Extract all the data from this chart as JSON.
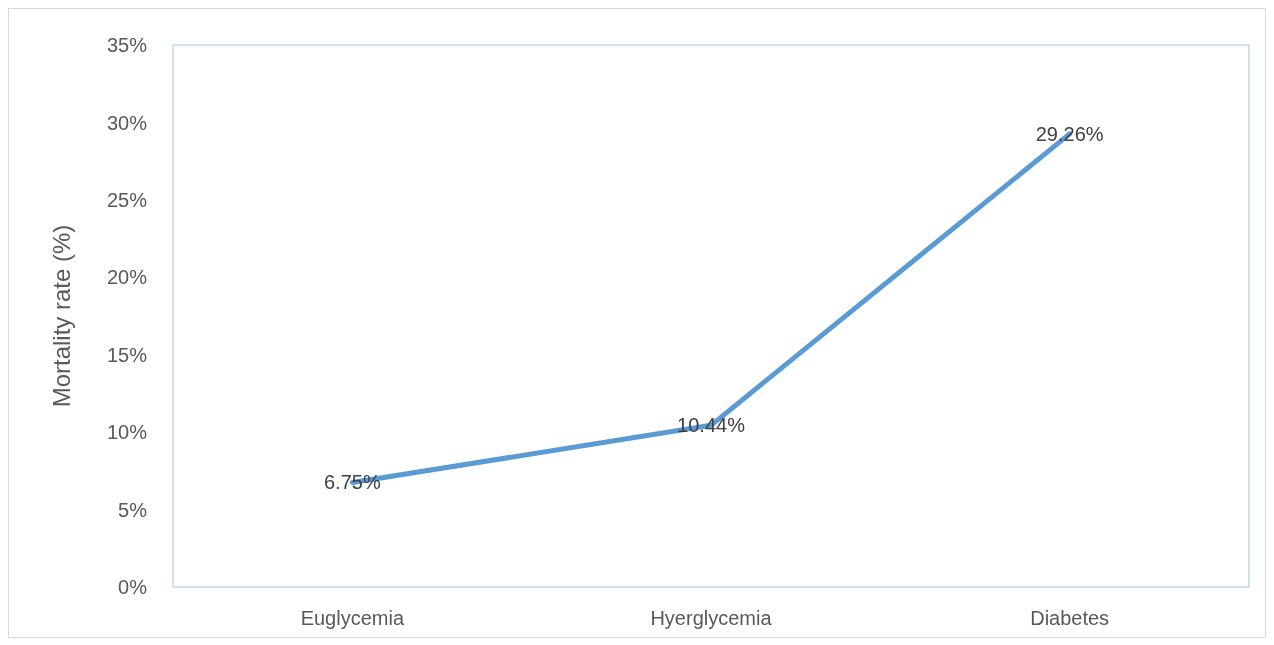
{
  "chart_data": {
    "type": "line",
    "ylabel": "Mortality rate (%)",
    "categories": [
      "Euglycemia",
      "Hyerglycemia",
      "Diabetes"
    ],
    "series": [
      {
        "color": "#5b9bd5",
        "values": [
          6.75,
          10.44,
          29.26
        ],
        "value_labels": [
          "6.75%",
          "10.44%",
          "29.26%"
        ]
      }
    ],
    "ylim": [
      0,
      35
    ],
    "yticks": [
      {
        "value": 0,
        "label": "0%"
      },
      {
        "value": 5,
        "label": "5%"
      },
      {
        "value": 10,
        "label": "10%"
      },
      {
        "value": 15,
        "label": "15%"
      },
      {
        "value": 20,
        "label": "20%"
      },
      {
        "value": 25,
        "label": "25%"
      },
      {
        "value": 30,
        "label": "30%"
      },
      {
        "value": 35,
        "label": "35%"
      }
    ],
    "marker": "none",
    "line_style": "solid"
  }
}
